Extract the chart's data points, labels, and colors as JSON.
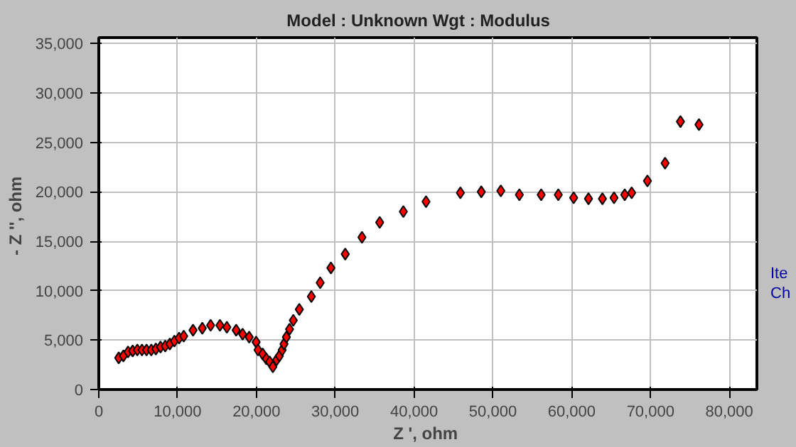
{
  "chart_data": {
    "type": "scatter",
    "title": "Model : Unknown     Wgt : Modulus",
    "xlabel": "Z ',  ohm",
    "ylabel": "- Z '',  ohm",
    "marker": "diamond",
    "grid": true,
    "xlim": [
      0,
      83500
    ],
    "ylim": [
      0,
      35600
    ],
    "xticks": [
      0,
      {
        "value": 10000,
        "label": "10,000"
      },
      {
        "value": 20000,
        "label": "20,000"
      },
      {
        "value": 30000,
        "label": "30,000"
      },
      {
        "value": 40000,
        "label": "40,000"
      },
      {
        "value": 50000,
        "label": "50,000"
      },
      {
        "value": 60000,
        "label": "60,000"
      },
      {
        "value": 70000,
        "label": "70,000"
      },
      {
        "value": 80000,
        "label": "80,000"
      }
    ],
    "yticks": [
      0,
      {
        "value": 5000,
        "label": "5,000"
      },
      {
        "value": 10000,
        "label": "10,000"
      },
      {
        "value": 15000,
        "label": "15,000"
      },
      {
        "value": 20000,
        "label": "20,000"
      },
      {
        "value": 25000,
        "label": "25,000"
      },
      {
        "value": 30000,
        "label": "30,000"
      },
      {
        "value": 35000,
        "label": "35,000"
      }
    ],
    "annotations": [
      "Ite",
      "Ch"
    ],
    "series": [
      {
        "color": "#ff0000",
        "x": [
          2530,
          3120,
          3710,
          4300,
          4890,
          5480,
          6060,
          6660,
          7240,
          7830,
          8430,
          9010,
          9590,
          10190,
          10780,
          11960,
          13130,
          14190,
          15370,
          16250,
          17430,
          18250,
          19080,
          19960,
          20200,
          20790,
          21260,
          21680,
          22080,
          22560,
          22910,
          23270,
          23500,
          23800,
          24200,
          24680,
          25440,
          26970,
          28090,
          29450,
          31270,
          33390,
          35640,
          38640,
          41520,
          45880,
          48530,
          51010,
          53360,
          56130,
          58300,
          60250,
          62130,
          63900,
          65370,
          66730,
          67610,
          69610,
          71850,
          73800,
          76150
        ],
        "values": [
          3200,
          3400,
          3800,
          3900,
          4000,
          4000,
          4000,
          4000,
          4100,
          4300,
          4400,
          4600,
          4900,
          5200,
          5400,
          6000,
          6200,
          6500,
          6500,
          6300,
          6000,
          5600,
          5300,
          4800,
          4000,
          3600,
          3100,
          2800,
          2300,
          3000,
          3400,
          4000,
          4600,
          5300,
          6100,
          7000,
          8100,
          9400,
          10800,
          12300,
          13700,
          15400,
          16900,
          18000,
          19000,
          19900,
          20000,
          20100,
          19700,
          19700,
          19700,
          19400,
          19300,
          19300,
          19400,
          19700,
          19900,
          21100,
          22900,
          27100,
          26800
        ]
      }
    ]
  }
}
